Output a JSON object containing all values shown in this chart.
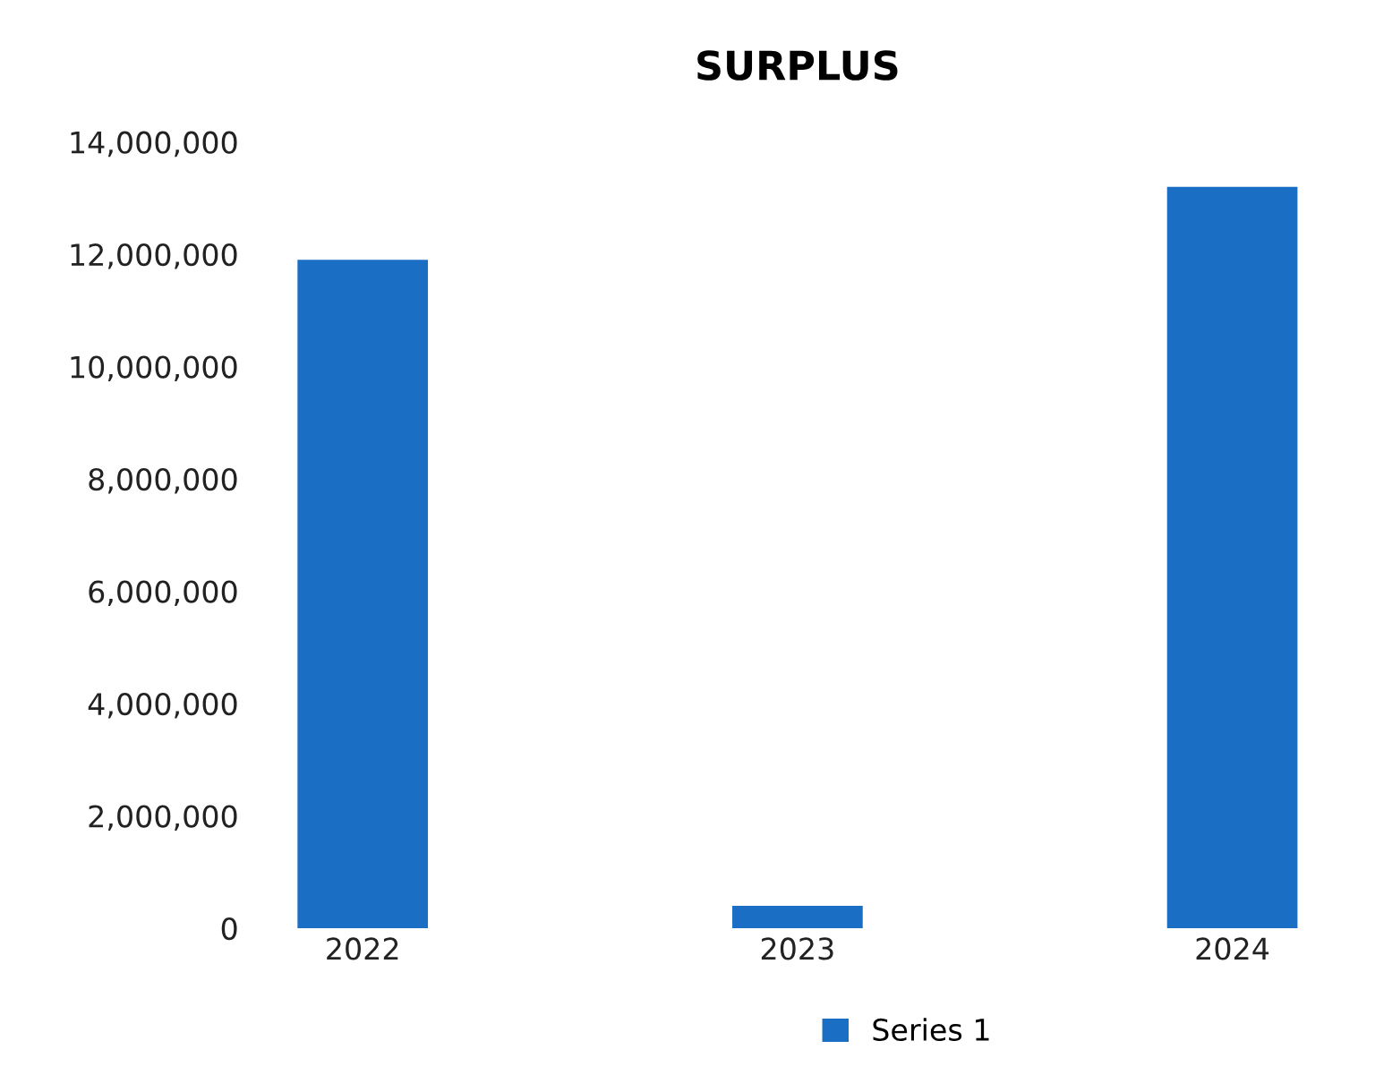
{
  "chart_data": {
    "type": "bar",
    "title": "SURPLUS",
    "categories": [
      "2022",
      "2023",
      "2024"
    ],
    "series": [
      {
        "name": "Series 1",
        "color": "#1a6fc4",
        "values": [
          11900000,
          400000,
          13200000
        ]
      }
    ],
    "ylim": [
      0,
      14000000
    ],
    "yticks": [
      {
        "value": 0,
        "label": "0"
      },
      {
        "value": 2000000,
        "label": "2,000,000"
      },
      {
        "value": 4000000,
        "label": "4,000,000"
      },
      {
        "value": 6000000,
        "label": "6,000,000"
      },
      {
        "value": 8000000,
        "label": "8,000,000"
      },
      {
        "value": 10000000,
        "label": "10,000,000"
      },
      {
        "value": 12000000,
        "label": "12,000,000"
      },
      {
        "value": 14000000,
        "label": "14,000,000"
      }
    ],
    "grid": false,
    "legend": "bottom"
  }
}
